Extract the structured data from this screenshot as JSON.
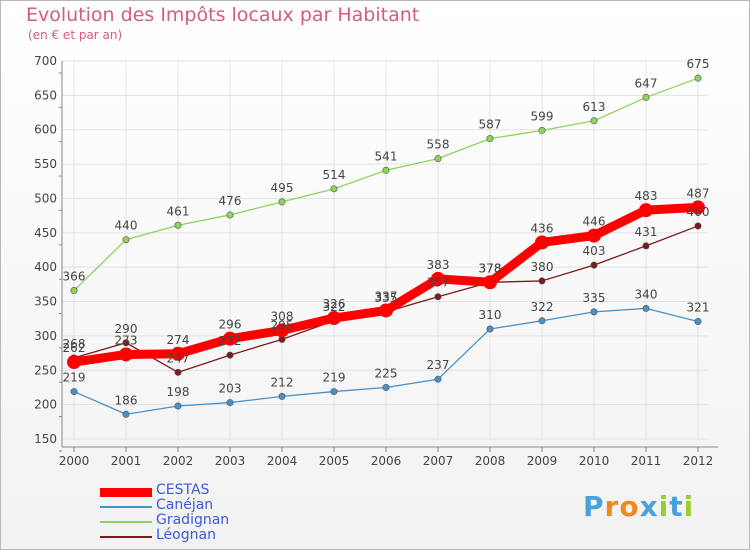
{
  "header": {
    "title": "Evolution des Impôts locaux par Habitant",
    "subtitle": "(en € et par an)"
  },
  "logo": {
    "letters": [
      "P",
      "r",
      "o",
      "x",
      "i",
      "t",
      "i"
    ],
    "colors": [
      "#4aa3d8",
      "#f08a1c",
      "#f08a1c",
      "#4aa3d8",
      "#9acd32",
      "#4aa3d8",
      "#9acd32"
    ]
  },
  "chart_data": {
    "type": "line",
    "x": [
      "2000",
      "2001",
      "2002",
      "2003",
      "2004",
      "2005",
      "2006",
      "2007",
      "2008",
      "2009",
      "2010",
      "2011",
      "2012"
    ],
    "ylim": [
      150,
      700
    ],
    "yticks": [
      "150",
      "200",
      "250",
      "300",
      "350",
      "400",
      "450",
      "500",
      "550",
      "600",
      "650",
      "700"
    ],
    "grid": true,
    "legend": "bottom-left",
    "series": [
      {
        "name": "CESTAS",
        "color": "#ff0000",
        "values": [
          262,
          273,
          274,
          296,
          308,
          326,
          337,
          383,
          378,
          436,
          446,
          483,
          487
        ]
      },
      {
        "name": "Canéjan",
        "color": "#4a90c8",
        "values": [
          219,
          186,
          198,
          203,
          212,
          219,
          225,
          237,
          310,
          322,
          335,
          340,
          321
        ]
      },
      {
        "name": "Gradignan",
        "color": "#8ed45a",
        "values": [
          366,
          440,
          461,
          476,
          495,
          514,
          541,
          558,
          587,
          599,
          613,
          647,
          675
        ]
      },
      {
        "name": "Léognan",
        "color": "#7a1c1c",
        "values": [
          268,
          290,
          247,
          272,
          295,
          322,
          335,
          357,
          378,
          380,
          403,
          431,
          460
        ]
      }
    ]
  }
}
